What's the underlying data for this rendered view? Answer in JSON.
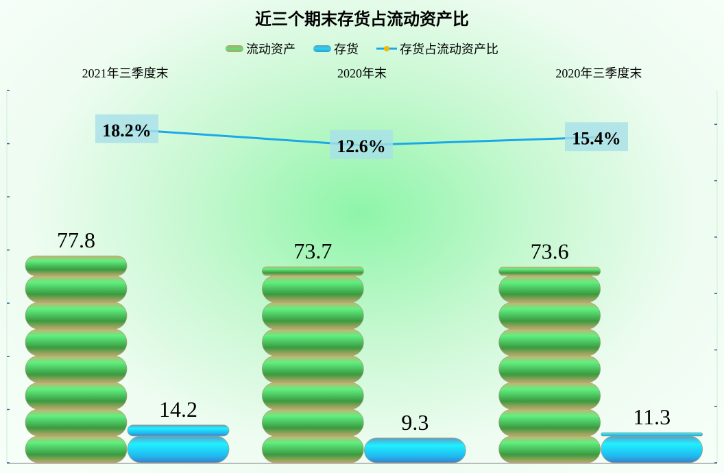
{
  "chart_data": {
    "type": "bar",
    "title": "近三个期末存货占流动资产比",
    "categories": [
      "2021年三季度末",
      "2020年末",
      "2020年三季度末"
    ],
    "series": [
      {
        "name": "流动资产",
        "type": "bar",
        "values": [
          77.8,
          73.7,
          73.6
        ],
        "labels": [
          "77.8",
          "73.7",
          "73.6"
        ],
        "color": "#5ee07a"
      },
      {
        "name": "存货",
        "type": "bar",
        "values": [
          14.2,
          9.3,
          11.3
        ],
        "labels": [
          "14.2",
          "9.3",
          "11.3"
        ],
        "color": "#22d8f0"
      },
      {
        "name": "存货占流动资产比",
        "type": "line",
        "axis": "secondary",
        "values": [
          18.2,
          12.6,
          15.4
        ],
        "labels": [
          "18.2%",
          "12.6%",
          "15.4%"
        ],
        "color": "#1aa8e8",
        "marker_color": "#f5b800"
      }
    ],
    "ylim": [
      0,
      140
    ],
    "y2lim": [
      -100,
      32
    ],
    "tick_labels_shown": false,
    "category_labels_position": "top",
    "legend_position": "top"
  }
}
